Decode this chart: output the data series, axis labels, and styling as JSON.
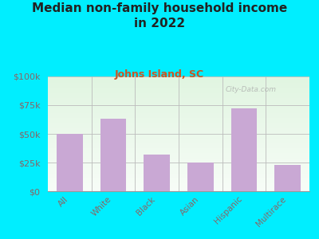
{
  "title": "Median non-family household income\nin 2022",
  "subtitle": "Johns Island, SC",
  "categories": [
    "All",
    "White",
    "Black",
    "Asian",
    "Hispanic",
    "Multirace"
  ],
  "values": [
    50000,
    63000,
    32000,
    25000,
    72000,
    23000
  ],
  "bar_color": "#c9a8d4",
  "ylim": [
    0,
    100000
  ],
  "yticks": [
    0,
    25000,
    50000,
    75000,
    100000
  ],
  "ytick_labels": [
    "$0",
    "$25k",
    "$50k",
    "$75k",
    "$100k"
  ],
  "background_outer": "#00eeff",
  "grid_color": "#bbbbbb",
  "title_color": "#222222",
  "subtitle_color": "#cc5522",
  "watermark_text": "City-Data.com",
  "watermark_color": "#aaaaaa",
  "title_fontsize": 11,
  "subtitle_fontsize": 9,
  "tick_label_color": "#886666"
}
